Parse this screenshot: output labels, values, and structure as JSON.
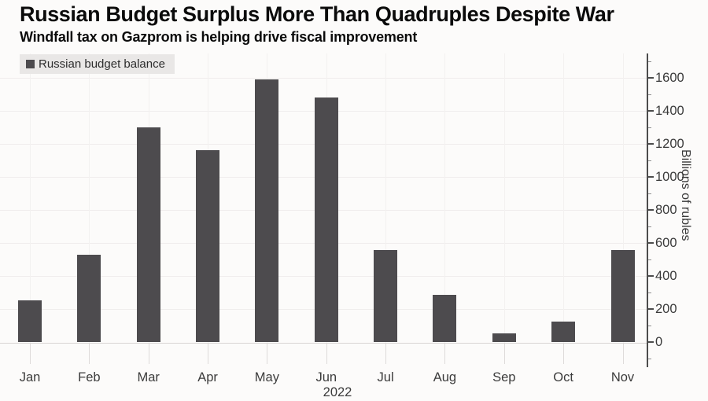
{
  "header": {
    "title": "Russian Budget Surplus More Than Quadruples Despite War",
    "subtitle": "Windfall tax on Gazprom is helping drive fiscal improvement"
  },
  "legend": {
    "label": "Russian budget balance",
    "position": "top-left",
    "swatch_color": "#4d4b4e",
    "background": "#e9e7e6"
  },
  "chart_data": {
    "type": "bar",
    "title": "Russian Budget Surplus More Than Quadruples Despite War",
    "subtitle": "Windfall tax on Gazprom is helping drive fiscal improvement",
    "series_name": "Russian budget balance",
    "categories": [
      "Jan",
      "Feb",
      "Mar",
      "Apr",
      "May",
      "Jun",
      "Jul",
      "Aug",
      "Sep",
      "Oct",
      "Nov"
    ],
    "values": [
      250,
      530,
      1300,
      1160,
      1590,
      1480,
      555,
      285,
      50,
      125,
      555
    ],
    "x_axis_year": "2022",
    "xlabel": "",
    "ylabel": "Billions of rubles",
    "ylim": [
      0,
      1600
    ],
    "y_ticks": [
      0,
      200,
      400,
      600,
      800,
      1000,
      1200,
      1400,
      1600
    ],
    "y_minor_tick_interval": 100,
    "y_axis_side": "right",
    "grid": true,
    "bar_color": "#4d4b4e",
    "background_color": "#fcfbfa"
  }
}
